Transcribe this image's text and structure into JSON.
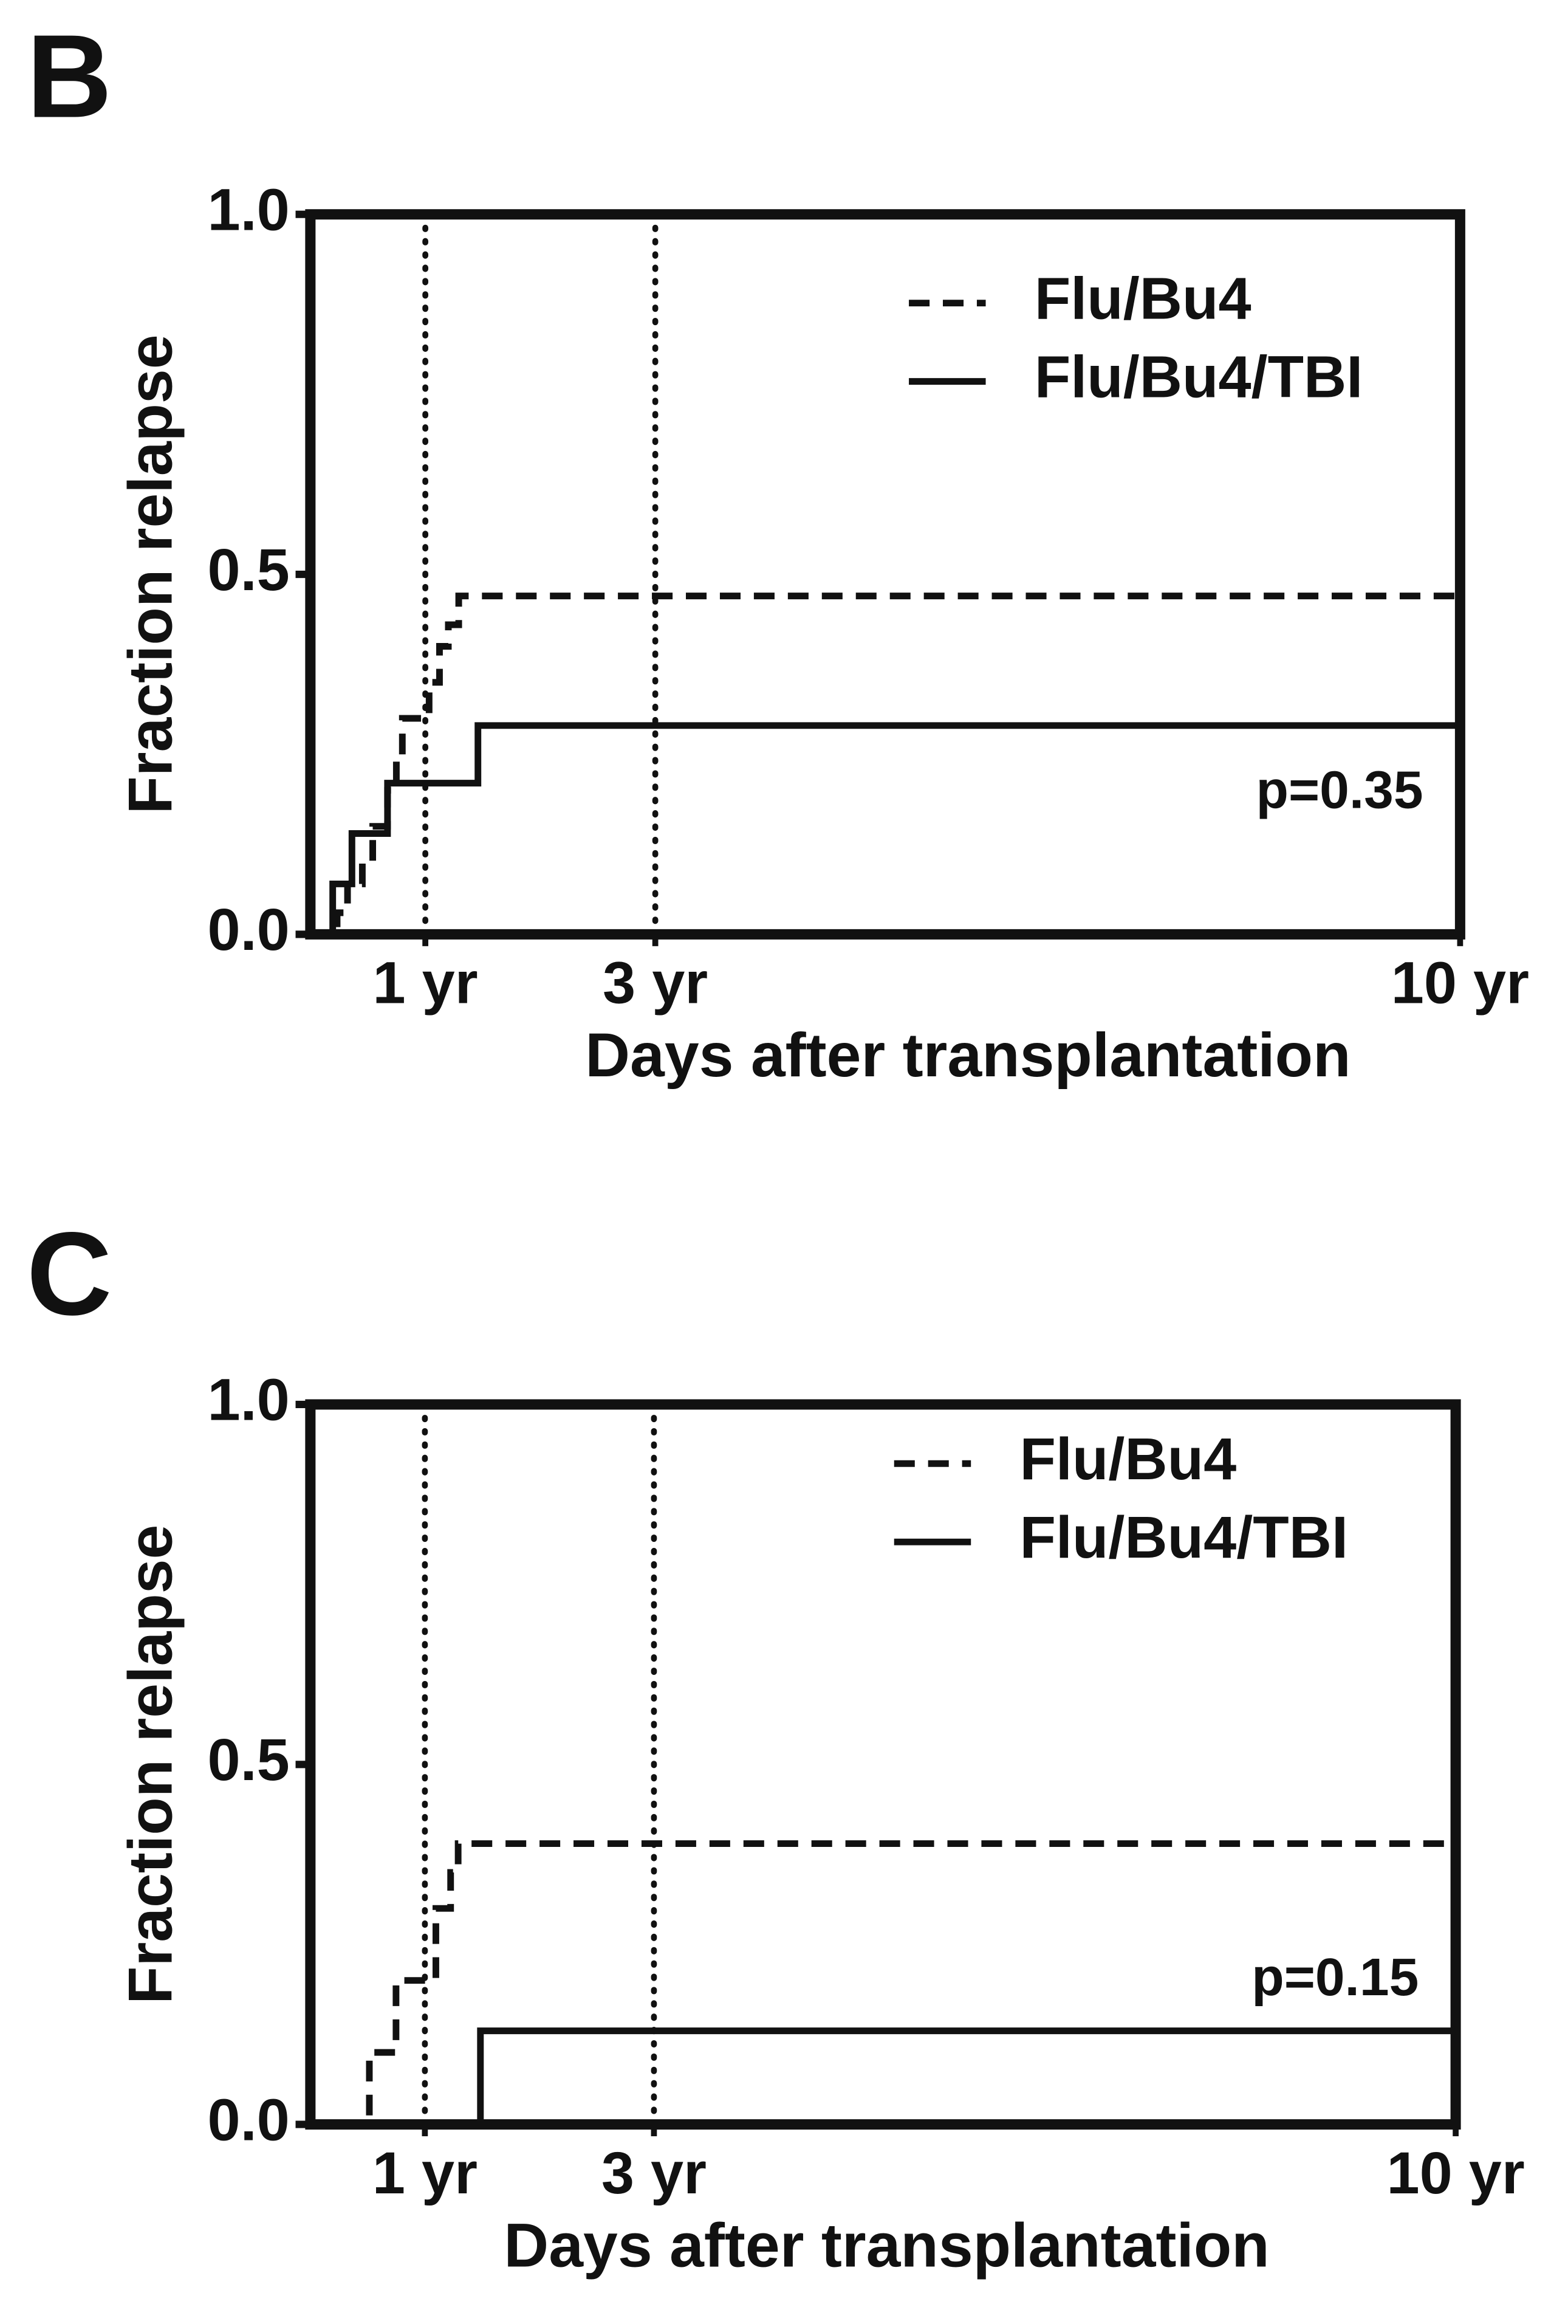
{
  "chart_data": [
    {
      "type": "line",
      "panel": "B",
      "xlabel": "Days after transplantation",
      "ylabel": "Fraction relapse",
      "annotation": "p=0.35",
      "xlim": [
        0,
        3650
      ],
      "ylim": [
        0,
        1
      ],
      "xticks": [
        {
          "value": 365,
          "label": "1 yr"
        },
        {
          "value": 1095,
          "label": "3 yr"
        },
        {
          "value": 3650,
          "label": "10 yr"
        }
      ],
      "yticks": [
        {
          "value": 0,
          "label": "0.0"
        },
        {
          "value": 0.5,
          "label": "0.5"
        },
        {
          "value": 1,
          "label": "1.0"
        }
      ],
      "vlines": [
        365,
        1095
      ],
      "legend": "upper right",
      "series": [
        {
          "name": "Flu/Bu4",
          "color": "#111111",
          "style": "dashed",
          "x": [
            0,
            85,
            118,
            165,
            198,
            245,
            273,
            292,
            377,
            410,
            438,
            471,
            3650
          ],
          "values": [
            0,
            0.03,
            0.07,
            0.1,
            0.15,
            0.2,
            0.25,
            0.3,
            0.35,
            0.4,
            0.43,
            0.47,
            0.47
          ]
        },
        {
          "name": "Flu/Bu4/TBI",
          "color": "#111111",
          "style": "solid",
          "x": [
            0,
            71,
            132,
            245,
            532,
            3650
          ],
          "values": [
            0,
            0.07,
            0.14,
            0.21,
            0.29,
            0.29
          ]
        }
      ]
    },
    {
      "type": "line",
      "panel": "C",
      "xlabel": "Days after transplantation",
      "ylabel": "Fraction relapse",
      "annotation": "p=0.15",
      "xlim": [
        0,
        3650
      ],
      "ylim": [
        0,
        1
      ],
      "xticks": [
        {
          "value": 365,
          "label": "1 yr"
        },
        {
          "value": 1095,
          "label": "3 yr"
        },
        {
          "value": 3650,
          "label": "10 yr"
        }
      ],
      "yticks": [
        {
          "value": 0,
          "label": "0.0"
        },
        {
          "value": 0.5,
          "label": "0.5"
        },
        {
          "value": 1,
          "label": "1.0"
        }
      ],
      "vlines": [
        365,
        1095
      ],
      "legend": "upper right",
      "series": [
        {
          "name": "Flu/Bu4",
          "color": "#111111",
          "style": "dashed",
          "x": [
            0,
            188,
            273,
            400,
            447,
            471,
            3650
          ],
          "values": [
            0,
            0.1,
            0.2,
            0.3,
            0.35,
            0.39,
            0.39
          ]
        },
        {
          "name": "Flu/Bu4/TBI",
          "color": "#111111",
          "style": "solid",
          "x": [
            0,
            542,
            3650
          ],
          "values": [
            0,
            0.13,
            0.13
          ]
        }
      ]
    }
  ]
}
